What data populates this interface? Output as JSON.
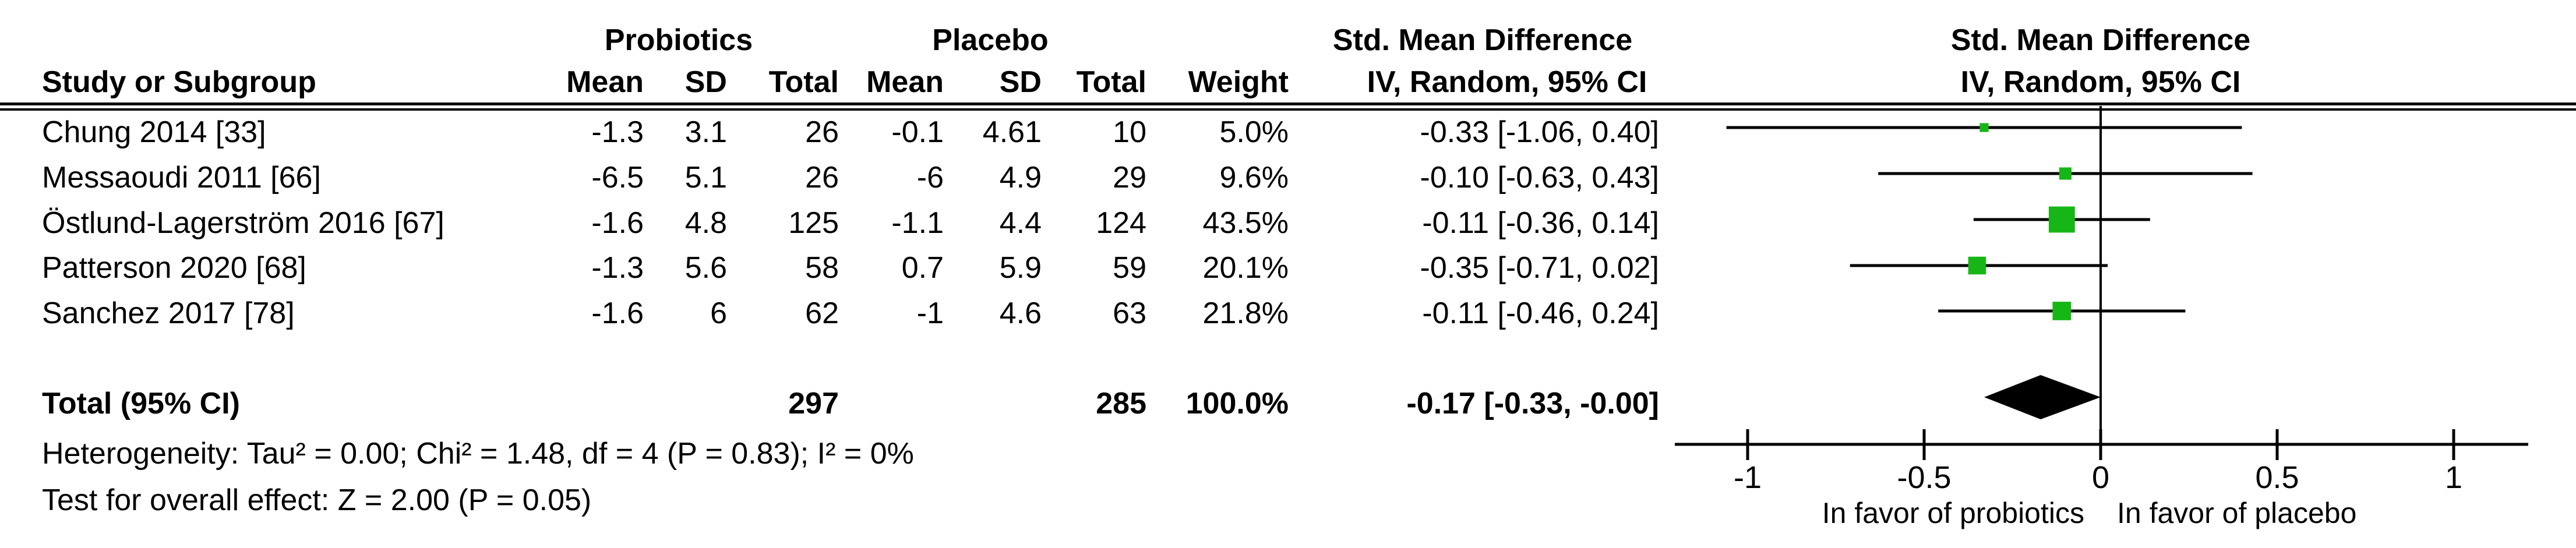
{
  "table": {
    "header_row1": {
      "probiotics": "Probiotics",
      "placebo": "Placebo",
      "smd_text": "Std. Mean Difference",
      "smd_plot": "Std. Mean Difference"
    },
    "header_row2": {
      "study": "Study or Subgroup",
      "p_mean": "Mean",
      "p_sd": "SD",
      "p_total": "Total",
      "c_mean": "Mean",
      "c_sd": "SD",
      "c_total": "Total",
      "weight": "Weight",
      "iv_text": "IV, Random, 95% CI",
      "iv_plot": "IV, Random, 95% CI"
    },
    "rows": [
      {
        "cells": [
          "Chung 2014 [33]",
          "-1.3",
          "3.1",
          "26",
          "-0.1",
          "4.61",
          "10",
          "5.0%",
          "-0.33 [-1.06, 0.40]"
        ]
      },
      {
        "cells": [
          "Messaoudi 2011 [66]",
          "-6.5",
          "5.1",
          "26",
          "-6",
          "4.9",
          "29",
          "9.6%",
          "-0.10 [-0.63, 0.43]"
        ]
      },
      {
        "cells": [
          "Östlund-Lagerström 2016 [67]",
          "-1.6",
          "4.8",
          "125",
          "-1.1",
          "4.4",
          "124",
          "43.5%",
          "-0.11 [-0.36, 0.14]"
        ]
      },
      {
        "cells": [
          "Patterson 2020 [68]",
          "-1.3",
          "5.6",
          "58",
          "0.7",
          "5.9",
          "59",
          "20.1%",
          "-0.35 [-0.71, 0.02]"
        ]
      },
      {
        "cells": [
          "Sanchez 2017 [78]",
          "-1.6",
          "6",
          "62",
          "-1",
          "4.6",
          "63",
          "21.8%",
          "-0.11 [-0.46, 0.24]"
        ]
      }
    ],
    "total_row": {
      "cells": [
        "Total (95% CI)",
        "",
        "",
        "297",
        "",
        "",
        "285",
        "100.0%",
        "-0.17 [-0.33, -0.00]"
      ]
    },
    "footer": {
      "heterogeneity": "Heterogeneity: Tau² = 0.00; Chi² = 1.48, df = 4 (P = 0.83); I² = 0%",
      "overall_effect": "Test for overall effect: Z = 2.00 (P = 0.05)"
    }
  },
  "chart_data": {
    "type": "forest",
    "xlabel": "Std. Mean Difference (IV, Random, 95% CI)",
    "x_ticks": [
      -1,
      -0.5,
      0,
      0.5,
      1
    ],
    "xlim": [
      -1.2,
      1.25
    ],
    "favor_left": "In favor of probiotics",
    "favor_right": "In favor of placebo",
    "studies": [
      {
        "name": "Chung 2014 [33]",
        "est": -0.33,
        "lo": -1.06,
        "hi": 0.4,
        "weight_pct": 5.0
      },
      {
        "name": "Messaoudi 2011 [66]",
        "est": -0.1,
        "lo": -0.63,
        "hi": 0.43,
        "weight_pct": 9.6
      },
      {
        "name": "Östlund-Lagerström 2016 [67]",
        "est": -0.11,
        "lo": -0.36,
        "hi": 0.14,
        "weight_pct": 43.5
      },
      {
        "name": "Patterson 2020 [68]",
        "est": -0.35,
        "lo": -0.71,
        "hi": 0.02,
        "weight_pct": 20.1
      },
      {
        "name": "Sanchez 2017 [78]",
        "est": -0.11,
        "lo": -0.46,
        "hi": 0.24,
        "weight_pct": 21.8
      }
    ],
    "total": {
      "name": "Total (95% CI)",
      "est": -0.17,
      "lo": -0.33,
      "hi": 0.0
    },
    "tick_labels": [
      "-1",
      "-0.5",
      "0",
      "0.5",
      "1"
    ]
  },
  "colors": {
    "marker_green": "#17B617",
    "ink": "#000000"
  }
}
